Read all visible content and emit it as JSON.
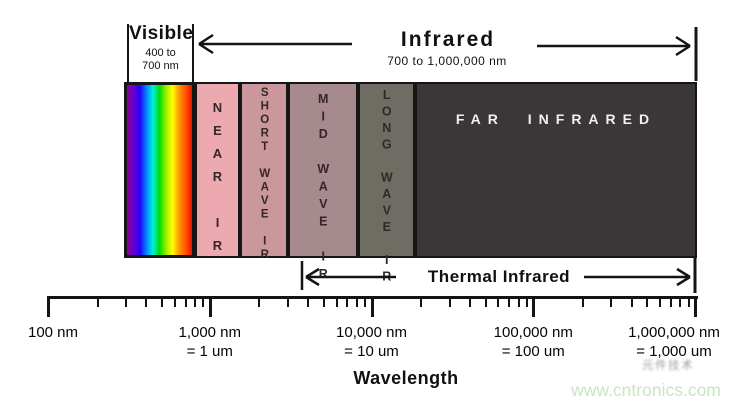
{
  "header": {
    "visible_label": "Visible",
    "visible_range_line1": "400 to",
    "visible_range_line2": "700 nm",
    "infrared_label": "Infrared",
    "infrared_range": "700 to 1,000,000 nm"
  },
  "bands": [
    {
      "id": "visible-spectrum",
      "label": "",
      "type": "rainbow"
    },
    {
      "id": "near-ir",
      "label": "NEAR IR",
      "color": "#eda9b0"
    },
    {
      "id": "short-wave-ir",
      "label": "SHORT WAVE IR",
      "color": "#ca979d"
    },
    {
      "id": "mid-wave-ir",
      "label": "MID WAVE IR",
      "color": "#a68a8e"
    },
    {
      "id": "long-wave-ir",
      "label": "LONG WAVE IR",
      "color": "#6f6c64"
    },
    {
      "id": "far-infrared",
      "label": "FAR INFRARED",
      "color": "#3b3738",
      "label_color": "#f4f0ee"
    }
  ],
  "rainbow_colors": [
    "#90009a",
    "#6600cc",
    "#2200ff",
    "#0088ff",
    "#00eedd",
    "#00dd00",
    "#99ee00",
    "#ffff00",
    "#ff9900",
    "#ff5500",
    "#ee1100"
  ],
  "thermal": {
    "label": "Thermal Infrared"
  },
  "axis": {
    "title": "Wavelength",
    "ticks": [
      {
        "value": 100,
        "line1": "100 nm",
        "line2": ""
      },
      {
        "value": 1000,
        "line1": "1,000 nm",
        "line2": "= 1 um"
      },
      {
        "value": 10000,
        "line1": "10,000 nm",
        "line2": "= 10 um"
      },
      {
        "value": 100000,
        "line1": "100,000 nm",
        "line2": "= 100 um"
      },
      {
        "value": 1000000,
        "line1": "1,000,000 nm",
        "line2": "= 1,000 um"
      }
    ]
  },
  "watermark": {
    "cjk": "元件技术",
    "site": "www.cntronics.com"
  },
  "colors": {
    "line": "#141414",
    "band_label": "#35262b",
    "watermark_green": "#c8e7bf"
  }
}
